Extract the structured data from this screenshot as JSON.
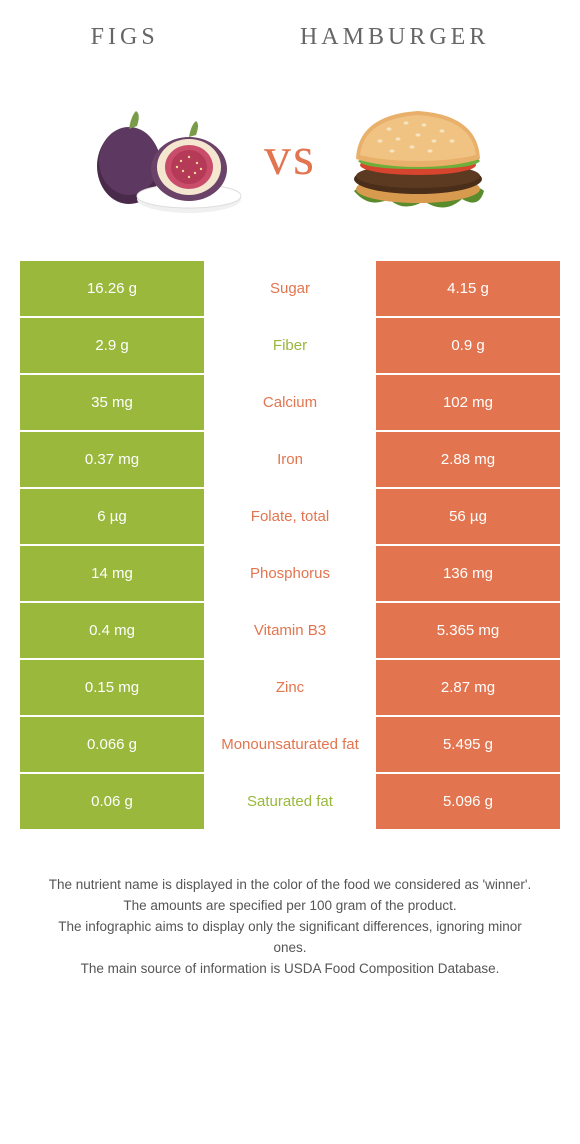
{
  "colors": {
    "figs": "#99b83c",
    "hamburger": "#e2754f",
    "neutral_text": "#666666",
    "bg": "#ffffff"
  },
  "header": {
    "left_title": "Figs",
    "right_title": "Hamburger",
    "vs_label": "vs"
  },
  "rows": [
    {
      "left": "16.26 g",
      "label": "Sugar",
      "right": "4.15 g",
      "winner": "hamburger"
    },
    {
      "left": "2.9 g",
      "label": "Fiber",
      "right": "0.9 g",
      "winner": "figs"
    },
    {
      "left": "35 mg",
      "label": "Calcium",
      "right": "102 mg",
      "winner": "hamburger"
    },
    {
      "left": "0.37 mg",
      "label": "Iron",
      "right": "2.88 mg",
      "winner": "hamburger"
    },
    {
      "left": "6 µg",
      "label": "Folate, total",
      "right": "56 µg",
      "winner": "hamburger"
    },
    {
      "left": "14 mg",
      "label": "Phosphorus",
      "right": "136 mg",
      "winner": "hamburger"
    },
    {
      "left": "0.4 mg",
      "label": "Vitamin B3",
      "right": "5.365 mg",
      "winner": "hamburger"
    },
    {
      "left": "0.15 mg",
      "label": "Zinc",
      "right": "2.87 mg",
      "winner": "hamburger"
    },
    {
      "left": "0.066 g",
      "label": "Monounsaturated fat",
      "right": "5.495 g",
      "winner": "hamburger"
    },
    {
      "left": "0.06 g",
      "label": "Saturated fat",
      "right": "5.096 g",
      "winner": "figs"
    }
  ],
  "footnotes": [
    "The nutrient name is displayed in the color of the food we considered as 'winner'.",
    "The amounts are specified per 100 gram of the product.",
    "The infographic aims to display only the significant differences, ignoring minor ones.",
    "The main source of information is USDA Food Composition Database."
  ]
}
